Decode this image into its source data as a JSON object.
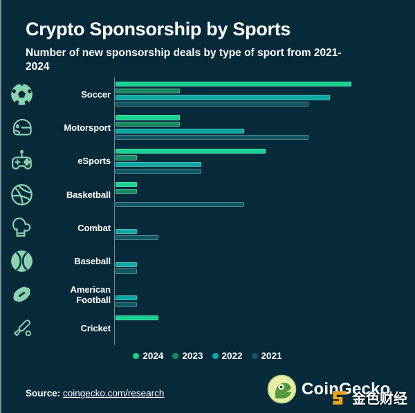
{
  "header": {
    "title": "Crypto Sponsorship by Sports",
    "subtitle": "Number of new sponsorship deals by type of sport from 2021-2024"
  },
  "chart_data": {
    "type": "bar",
    "orientation": "horizontal",
    "title": "Crypto Sponsorship by Sports",
    "subtitle": "Number of new sponsorship deals by type of sport from 2021-2024",
    "xlabel": "",
    "ylabel": "",
    "grid": false,
    "legend_position": "bottom",
    "xlim": [
      0,
      13.3
    ],
    "categories": [
      "Soccer",
      "Motorsport",
      "eSports",
      "Basketball",
      "Combat",
      "Baseball",
      "American Football",
      "Cricket"
    ],
    "icons": [
      "soccer-ball-icon",
      "racing-helmet-icon",
      "game-controller-icon",
      "basketball-icon",
      "boxing-glove-icon",
      "baseball-icon",
      "american-football-icon",
      "cricket-bat-icon"
    ],
    "series": [
      {
        "name": "2024",
        "color": "#16d28e",
        "values": [
          11,
          3,
          7,
          1,
          0,
          0,
          0,
          2
        ]
      },
      {
        "name": "2023",
        "color": "#178a60",
        "values": [
          3,
          3,
          1,
          1,
          0,
          0,
          0,
          0
        ]
      },
      {
        "name": "2022",
        "color": "#0ca7a2",
        "values": [
          10,
          6,
          4,
          0,
          1,
          1,
          1,
          0
        ]
      },
      {
        "name": "2021",
        "color": "#0e5763",
        "values": [
          9,
          9,
          4,
          6,
          2,
          1,
          1,
          0
        ]
      }
    ]
  },
  "footer": {
    "source_label": "Source:",
    "source_link": "coingecko.com/research",
    "brand": "CoinGecko"
  },
  "watermark": {
    "text": "金色财经",
    "color": "#f0a21c"
  },
  "colors": {
    "background": "#072a3a",
    "icon": "#8bd3ae",
    "text": "#ffffff",
    "axis": "rgba(210,224,228,0.55)"
  }
}
